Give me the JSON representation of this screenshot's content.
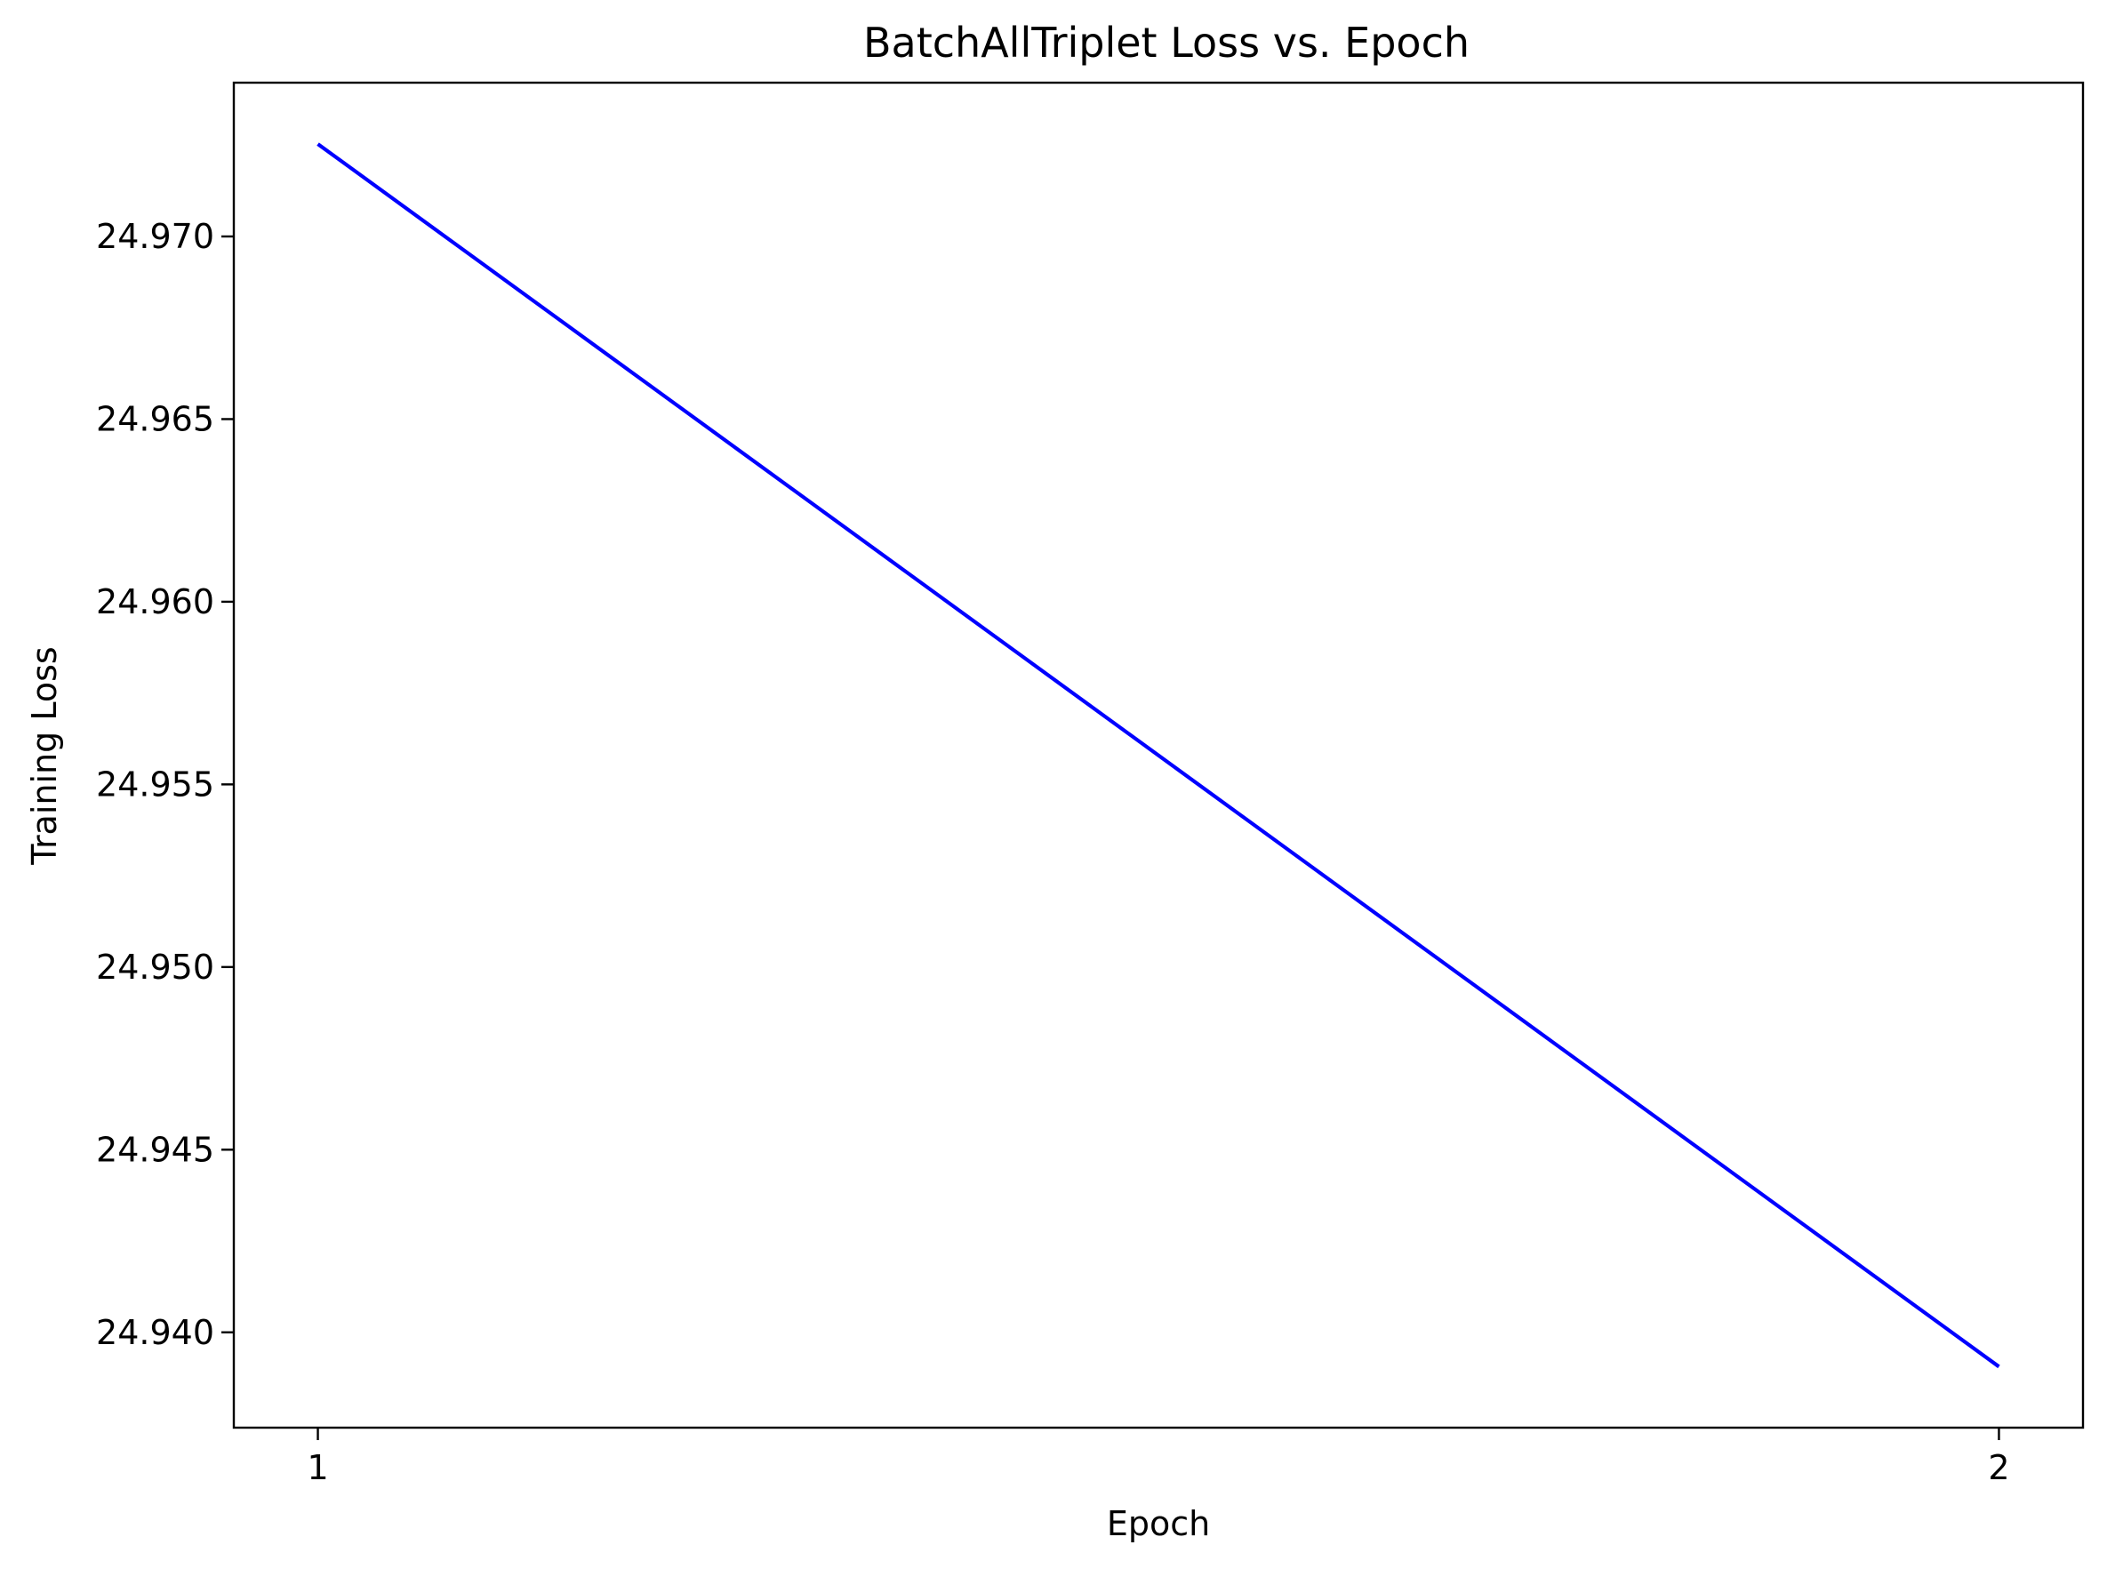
{
  "chart_data": {
    "type": "line",
    "title": "BatchAllTriplet Loss vs. Epoch",
    "xlabel": "Epoch",
    "ylabel": "Training Loss",
    "x": [
      1,
      2
    ],
    "series": [
      {
        "values": [
          24.97253,
          24.93906
        ],
        "color": "#0000ff"
      }
    ],
    "xticks": [
      1,
      2
    ],
    "xtick_labels": [
      "1",
      "2"
    ],
    "yticks": [
      24.94,
      24.945,
      24.95,
      24.955,
      24.96,
      24.965,
      24.97
    ],
    "ytick_labels": [
      "24.940",
      "24.945",
      "24.950",
      "24.955",
      "24.960",
      "24.965",
      "24.970"
    ],
    "xlim": [
      0.95,
      2.05
    ],
    "ylim": [
      24.93739,
      24.97421
    ],
    "grid": false,
    "legend": "none"
  }
}
